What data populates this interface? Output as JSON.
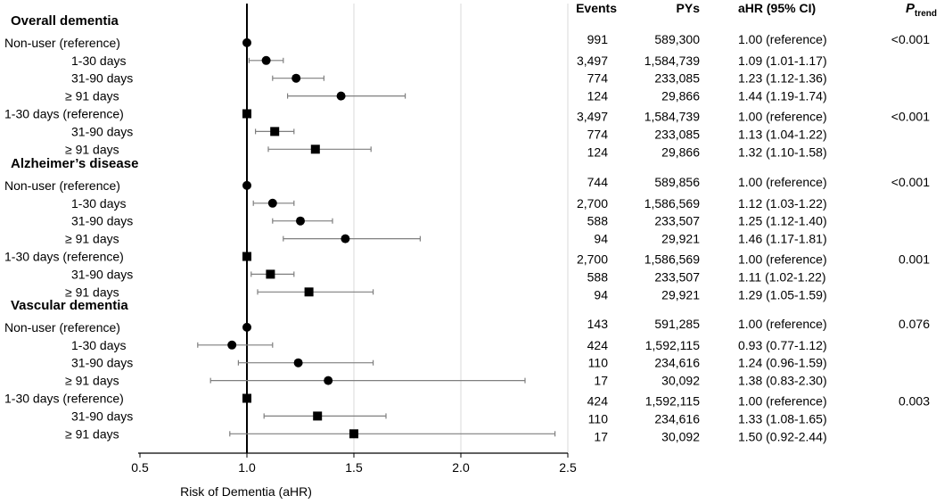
{
  "chart_data": {
    "type": "forest",
    "xlabel": "Risk of Dementia (aHR)",
    "xlim": [
      0.5,
      2.5
    ],
    "xticks": [
      "0.5",
      "1.0",
      "1.5",
      "2.0",
      "2.5"
    ],
    "reference_value": 1.0,
    "columns": {
      "events": "Events",
      "pys": "PYs",
      "ahr": "aHR (95% CI)",
      "ptrend_main": "P",
      "ptrend_sub": "trend"
    },
    "groups": [
      {
        "title": "Overall dementia",
        "rows": [
          {
            "label": "Non-user (reference)",
            "marker": "circle",
            "est": 1.0,
            "lo": null,
            "hi": null,
            "events": "991",
            "pys": "589,300",
            "ahr": "1.00 (reference)",
            "ptrend": "<0.001"
          },
          {
            "label": "1-30 days",
            "marker": "circle",
            "est": 1.09,
            "lo": 1.01,
            "hi": 1.17,
            "events": "3,497",
            "pys": "1,584,739",
            "ahr": "1.09 (1.01-1.17)",
            "ptrend": ""
          },
          {
            "label": "31-90 days",
            "marker": "circle",
            "est": 1.23,
            "lo": 1.12,
            "hi": 1.36,
            "events": "774",
            "pys": "233,085",
            "ahr": "1.23 (1.12-1.36)",
            "ptrend": ""
          },
          {
            "label": "≥ 91 days",
            "marker": "circle",
            "est": 1.44,
            "lo": 1.19,
            "hi": 1.74,
            "events": "124",
            "pys": "29,866",
            "ahr": "1.44 (1.19-1.74)",
            "ptrend": ""
          },
          {
            "label": "1-30 days (reference)",
            "marker": "square",
            "est": 1.0,
            "lo": null,
            "hi": null,
            "events": "3,497",
            "pys": "1,584,739",
            "ahr": "1.00 (reference)",
            "ptrend": "<0.001"
          },
          {
            "label": "31-90 days",
            "marker": "square",
            "est": 1.13,
            "lo": 1.04,
            "hi": 1.22,
            "events": "774",
            "pys": "233,085",
            "ahr": "1.13 (1.04-1.22)",
            "ptrend": ""
          },
          {
            "label": "≥ 91 days",
            "marker": "square",
            "est": 1.32,
            "lo": 1.1,
            "hi": 1.58,
            "events": "124",
            "pys": "29,866",
            "ahr": "1.32 (1.10-1.58)",
            "ptrend": ""
          }
        ]
      },
      {
        "title": "Alzheimer’s disease",
        "rows": [
          {
            "label": "Non-user (reference)",
            "marker": "circle",
            "est": 1.0,
            "lo": null,
            "hi": null,
            "events": "744",
            "pys": "589,856",
            "ahr": "1.00 (reference)",
            "ptrend": "<0.001"
          },
          {
            "label": "1-30 days",
            "marker": "circle",
            "est": 1.12,
            "lo": 1.03,
            "hi": 1.22,
            "events": "2,700",
            "pys": "1,586,569",
            "ahr": "1.12 (1.03-1.22)",
            "ptrend": ""
          },
          {
            "label": "31-90 days",
            "marker": "circle",
            "est": 1.25,
            "lo": 1.12,
            "hi": 1.4,
            "events": "588",
            "pys": "233,507",
            "ahr": "1.25 (1.12-1.40)",
            "ptrend": ""
          },
          {
            "label": "≥ 91 days",
            "marker": "circle",
            "est": 1.46,
            "lo": 1.17,
            "hi": 1.81,
            "events": "94",
            "pys": "29,921",
            "ahr": "1.46 (1.17-1.81)",
            "ptrend": ""
          },
          {
            "label": "1-30 days (reference)",
            "marker": "square",
            "est": 1.0,
            "lo": null,
            "hi": null,
            "events": "2,700",
            "pys": "1,586,569",
            "ahr": "1.00 (reference)",
            "ptrend": "0.001"
          },
          {
            "label": "31-90 days",
            "marker": "square",
            "est": 1.11,
            "lo": 1.02,
            "hi": 1.22,
            "events": "588",
            "pys": "233,507",
            "ahr": "1.11 (1.02-1.22)",
            "ptrend": ""
          },
          {
            "label": "≥ 91 days",
            "marker": "square",
            "est": 1.29,
            "lo": 1.05,
            "hi": 1.59,
            "events": "94",
            "pys": "29,921",
            "ahr": "1.29 (1.05-1.59)",
            "ptrend": ""
          }
        ]
      },
      {
        "title": "Vascular dementia",
        "rows": [
          {
            "label": "Non-user (reference)",
            "marker": "circle",
            "est": 1.0,
            "lo": null,
            "hi": null,
            "events": "143",
            "pys": "591,285",
            "ahr": "1.00 (reference)",
            "ptrend": "0.076"
          },
          {
            "label": "1-30 days",
            "marker": "circle",
            "est": 0.93,
            "lo": 0.77,
            "hi": 1.12,
            "events": "424",
            "pys": "1,592,115",
            "ahr": "0.93 (0.77-1.12)",
            "ptrend": ""
          },
          {
            "label": "31-90 days",
            "marker": "circle",
            "est": 1.24,
            "lo": 0.96,
            "hi": 1.59,
            "events": "110",
            "pys": "234,616",
            "ahr": "1.24 (0.96-1.59)",
            "ptrend": ""
          },
          {
            "label": "≥ 91 days",
            "marker": "circle",
            "est": 1.38,
            "lo": 0.83,
            "hi": 2.3,
            "events": "17",
            "pys": "30,092",
            "ahr": "1.38 (0.83-2.30)",
            "ptrend": ""
          },
          {
            "label": "1-30 days (reference)",
            "marker": "square",
            "est": 1.0,
            "lo": null,
            "hi": null,
            "events": "424",
            "pys": "1,592,115",
            "ahr": "1.00 (reference)",
            "ptrend": "0.003"
          },
          {
            "label": "31-90 days",
            "marker": "square",
            "est": 1.33,
            "lo": 1.08,
            "hi": 1.65,
            "events": "110",
            "pys": "234,616",
            "ahr": "1.33 (1.08-1.65)",
            "ptrend": ""
          },
          {
            "label": "≥ 91 days",
            "marker": "square",
            "est": 1.5,
            "lo": 0.92,
            "hi": 2.44,
            "events": "17",
            "pys": "30,092",
            "ahr": "1.50 (0.92-2.44)",
            "ptrend": ""
          }
        ]
      }
    ]
  }
}
